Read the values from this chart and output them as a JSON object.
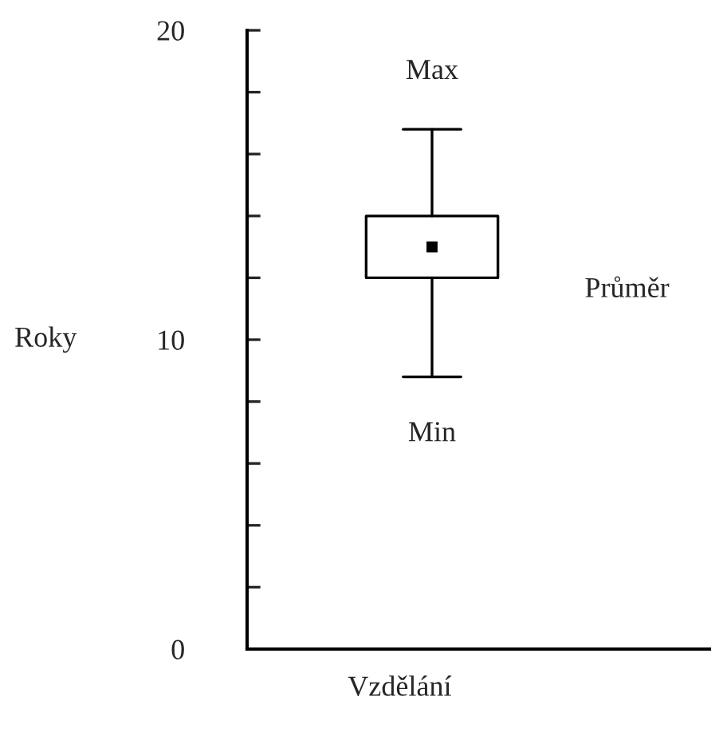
{
  "chart_data": {
    "type": "box",
    "categories": [
      null
    ],
    "xlabel": "Vzdělání",
    "ylabel": "Roky",
    "boxes": [
      {
        "low": 8.8,
        "q1": 12,
        "q3": 14,
        "high": 16.8,
        "mean": 13
      }
    ],
    "ylim": [
      0,
      20
    ],
    "yticks": [
      0,
      {
        "value": 2,
        "label": null
      },
      {
        "value": 4,
        "label": null
      },
      {
        "value": 6,
        "label": null
      },
      {
        "value": 8,
        "label": null
      },
      10,
      {
        "value": 12,
        "label": null
      },
      {
        "value": 14,
        "label": null
      },
      {
        "value": 16,
        "label": null
      },
      {
        "value": 18,
        "label": null
      },
      20
    ],
    "tick_labels": "y",
    "annotations": [
      {
        "text": "Max",
        "y": 16.8
      },
      "Průměr",
      {
        "text": "Min",
        "y": 8.8
      }
    ]
  }
}
